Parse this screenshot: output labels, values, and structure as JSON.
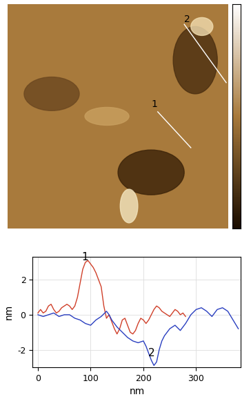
{
  "image": {
    "profile_labels": [
      "1",
      "2"
    ]
  },
  "chart_data": {
    "type": "line",
    "x_label": "nm",
    "y_label": "nm",
    "xlim": [
      -10,
      385
    ],
    "ylim": [
      -3,
      3.3
    ],
    "xticks": [
      0,
      100,
      200,
      300
    ],
    "yticks": [
      -2,
      0,
      2
    ],
    "grid": true,
    "series": [
      {
        "name": "1",
        "color": "#d0402a",
        "x": [
          0,
          5,
          10,
          15,
          20,
          25,
          30,
          35,
          40,
          45,
          50,
          55,
          60,
          65,
          70,
          75,
          80,
          85,
          90,
          95,
          100,
          105,
          110,
          115,
          120,
          125,
          130,
          135,
          140,
          145,
          150,
          155,
          160,
          165,
          170,
          175,
          180,
          185,
          190,
          195,
          200,
          205,
          210,
          215,
          220,
          225,
          230,
          235,
          240,
          245,
          250,
          255,
          260,
          265,
          270,
          275,
          280
        ],
        "values": [
          0.1,
          0.3,
          0.1,
          0.2,
          0.5,
          0.6,
          0.3,
          0.1,
          0.2,
          0.4,
          0.5,
          0.6,
          0.5,
          0.3,
          0.5,
          1.0,
          1.8,
          2.6,
          3.0,
          3.1,
          2.9,
          2.7,
          2.4,
          2.0,
          1.6,
          0.5,
          -0.2,
          0.0,
          -0.4,
          -0.8,
          -1.1,
          -0.8,
          -0.3,
          -0.2,
          -0.6,
          -1.0,
          -1.1,
          -0.9,
          -0.5,
          -0.2,
          -0.3,
          -0.5,
          -0.3,
          0.0,
          0.3,
          0.5,
          0.4,
          0.2,
          0.1,
          0.0,
          -0.1,
          0.1,
          0.3,
          0.2,
          0.0,
          0.1,
          -0.1
        ]
      },
      {
        "name": "2",
        "color": "#2a3fc0",
        "x": [
          0,
          10,
          20,
          30,
          40,
          50,
          60,
          70,
          80,
          90,
          100,
          110,
          120,
          130,
          135,
          140,
          150,
          160,
          170,
          180,
          190,
          200,
          205,
          210,
          215,
          220,
          225,
          230,
          235,
          240,
          250,
          260,
          270,
          280,
          290,
          300,
          310,
          320,
          330,
          340,
          350,
          360,
          370,
          380
        ],
        "values": [
          0.0,
          -0.1,
          0.0,
          0.1,
          -0.1,
          0.0,
          0.0,
          -0.2,
          -0.3,
          -0.5,
          -0.6,
          -0.3,
          -0.1,
          0.2,
          0.0,
          -0.3,
          -0.7,
          -1.0,
          -1.3,
          -1.5,
          -1.6,
          -1.5,
          -1.8,
          -2.2,
          -2.6,
          -2.9,
          -2.7,
          -2.0,
          -1.5,
          -1.2,
          -0.8,
          -0.6,
          -0.9,
          -0.5,
          0.0,
          0.3,
          0.4,
          0.2,
          -0.1,
          0.3,
          0.4,
          0.2,
          -0.3,
          -0.8
        ]
      }
    ],
    "annotations": [
      {
        "text": "1",
        "x": 95,
        "y": 3.0
      },
      {
        "text": "2",
        "x": 222,
        "y": -2.5
      }
    ]
  }
}
